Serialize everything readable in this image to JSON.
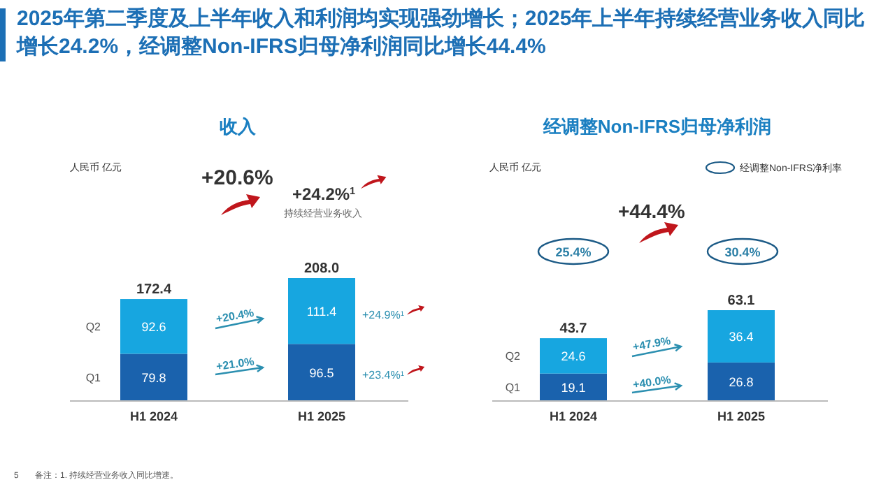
{
  "chart_data": [
    {
      "type": "bar",
      "title": "收入",
      "categories": [
        "H1 2024",
        "H1 2025"
      ],
      "stacked": true,
      "data_labels": true,
      "totals": [
        "172.4",
        "208.0"
      ],
      "series": [
        {
          "name": "Q1",
          "color": "#1a62ad",
          "values": [
            79.8,
            96.5
          ]
        },
        {
          "name": "Q2",
          "color": "#17a6e0",
          "values": [
            92.6,
            111.4
          ]
        }
      ],
      "annotations": [
        "人民币 亿元",
        "+20.6%",
        "+24.2%$^{1}$",
        "持续经营业务收入",
        "+20.4%",
        "+21.0%",
        "+24.9%$^{1}$",
        "+23.4%$^{1}$",
        "2025年第二季度及上半年收入和利润均实现强劲增长；2025年上半年持续经营业务收入同比增长24.2%，经调整Non-IFRS归母净利润同比增长44.4%",
        "备注：1. 持续经营业务收入同比增速。",
        "5"
      ]
    },
    {
      "type": "bar",
      "title": "经调整Non-IFRS归母净利润",
      "categories": [
        "H1 2024",
        "H1 2025"
      ],
      "stacked": true,
      "data_labels": true,
      "totals": [
        "43.7",
        "63.1"
      ],
      "series": [
        {
          "name": "Q1",
          "color": "#1a62ad",
          "values": [
            19.1,
            26.8
          ]
        },
        {
          "name": "Q2",
          "color": "#17a6e0",
          "values": [
            24.6,
            36.4
          ]
        }
      ],
      "annotations": [
        "人民币 亿元",
        "经调整Non-IFRS净利率",
        "+44.4%",
        "25.4%",
        "30.4%",
        "+47.9%",
        "+40.0%"
      ]
    }
  ]
}
